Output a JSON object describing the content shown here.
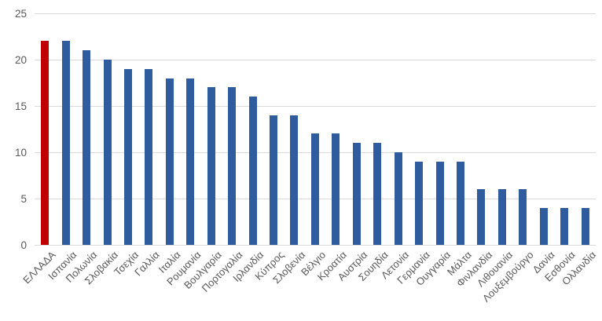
{
  "chart_data": {
    "type": "bar",
    "title": "",
    "xlabel": "",
    "ylabel": "",
    "categories": [
      "ΕΛΛΑΔΑ",
      "Ισπανία",
      "Πολωνία",
      "Σλοβακία",
      "Τσεχία",
      "Γαλλία",
      "Ιταλία",
      "Ρουμανία",
      "Βουλγαρία",
      "Πορτογαλία",
      "Ιρλανδία",
      "Κύπρος",
      "Σλοβενία",
      "Βέλγιο",
      "Κροατία",
      "Αυστρία",
      "Σουηδία",
      "Λετονία",
      "Γερμανία",
      "Ουγγαρία",
      "Μάλτα",
      "Φινλανδία",
      "Λιθουανία",
      "Λουξεμβούργο",
      "Δανία",
      "Εσθονία",
      "Ολλανδία"
    ],
    "values": [
      22,
      22,
      21,
      20,
      19,
      19,
      18,
      18,
      17,
      17,
      16,
      14,
      14,
      12,
      12,
      11,
      11,
      10,
      9,
      9,
      9,
      6,
      6,
      6,
      4,
      4,
      4
    ],
    "highlight_index": 0,
    "highlight_color": "#c00000",
    "bar_color": "#2e5c9e",
    "ylim": [
      0,
      25
    ],
    "yticks": [
      0,
      5,
      10,
      15,
      20,
      25
    ],
    "grid": true,
    "gridline_color": "#d9d9d9",
    "axis_text_color": "#595959",
    "legend": "none",
    "x_label_rotation_deg": 45
  }
}
